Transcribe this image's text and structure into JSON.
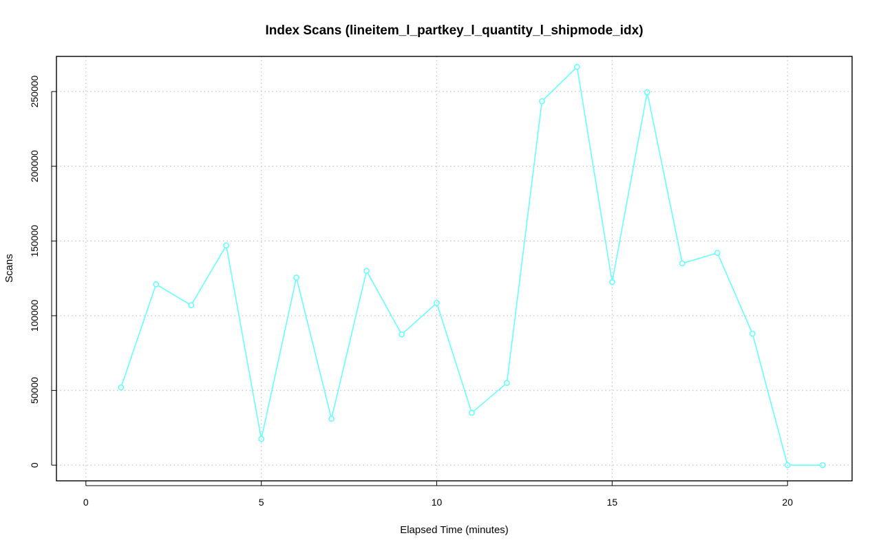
{
  "chart_data": {
    "type": "line",
    "title": "Index Scans (lineitem_l_partkey_l_quantity_l_shipmode_idx)",
    "xlabel": "Elapsed Time (minutes)",
    "ylabel": "Scans",
    "xlim": [
      -0.84,
      21.84
    ],
    "ylim": [
      -10500,
      273500
    ],
    "x_ticks": [
      0,
      5,
      10,
      15,
      20
    ],
    "y_ticks": [
      0,
      50000,
      100000,
      150000,
      200000,
      250000
    ],
    "grid": true,
    "series": [
      {
        "color": "#66ffff",
        "marker": "open-circle",
        "x": [
          1,
          2,
          3,
          4,
          5,
          6,
          7,
          8,
          9,
          10,
          11,
          12,
          13,
          14,
          15,
          16,
          17,
          18,
          19,
          20,
          21
        ],
        "values": [
          52000,
          121000,
          107000,
          147000,
          17500,
          125500,
          31000,
          130000,
          87500,
          108500,
          35000,
          55000,
          243500,
          266500,
          122500,
          249500,
          135000,
          142000,
          88000,
          0,
          0
        ]
      }
    ]
  }
}
